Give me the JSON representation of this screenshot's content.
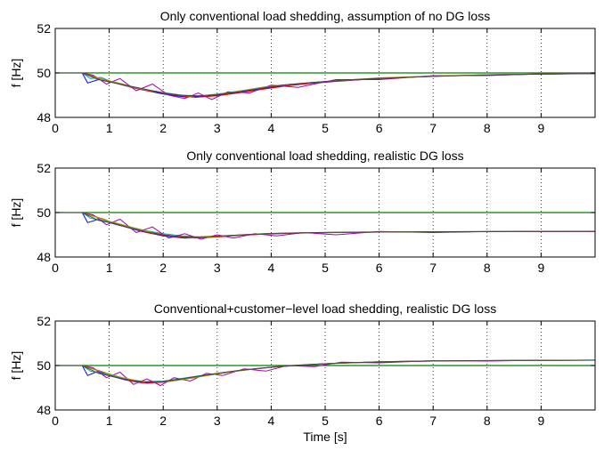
{
  "chart_data": [
    {
      "type": "line",
      "title": "Only conventional load shedding, assumption of no DG loss",
      "xlabel": "",
      "ylabel": "f [Hz]",
      "xlim": [
        0,
        10
      ],
      "ylim": [
        48,
        52
      ],
      "xticks": [
        0,
        1,
        2,
        3,
        4,
        5,
        6,
        7,
        8,
        9
      ],
      "yticks": [
        48,
        50,
        52
      ],
      "grid": "x-dotted",
      "reference_line": 50,
      "series": [
        {
          "color": "#0000ff",
          "x": [
            0,
            0.5,
            0.6,
            0.8,
            1,
            1.3,
            1.6,
            2,
            2.4,
            2.8,
            3.2,
            3.6,
            4,
            4.6,
            5.2,
            6,
            7,
            8,
            9,
            10
          ],
          "y": [
            50,
            50,
            49.55,
            49.7,
            49.6,
            49.45,
            49.25,
            49.05,
            48.92,
            48.95,
            49.05,
            49.2,
            49.35,
            49.5,
            49.62,
            49.75,
            49.85,
            49.9,
            49.95,
            49.97
          ]
        },
        {
          "color": "#ff0000",
          "x": [
            0,
            0.5,
            0.7,
            0.9,
            1.1,
            1.4,
            1.7,
            2,
            2.3,
            2.6,
            3,
            3.4,
            3.8,
            4.3,
            5,
            6,
            7,
            8,
            9,
            10
          ],
          "y": [
            50,
            50,
            49.85,
            49.7,
            49.55,
            49.35,
            49.2,
            49.1,
            48.98,
            48.9,
            48.97,
            49.1,
            49.25,
            49.42,
            49.6,
            49.75,
            49.85,
            49.92,
            49.95,
            49.97
          ]
        },
        {
          "color": "#00aaaa",
          "x": [
            0,
            0.5,
            0.65,
            0.85,
            1.05,
            1.35,
            1.65,
            2,
            2.35,
            2.7,
            3.1,
            3.5,
            3.9,
            4.4,
            5.1,
            6,
            7,
            8,
            9,
            10
          ],
          "y": [
            50,
            50,
            49.75,
            49.8,
            49.6,
            49.4,
            49.25,
            49.12,
            49.0,
            48.97,
            49.08,
            49.22,
            49.38,
            49.5,
            49.63,
            49.76,
            49.86,
            49.91,
            49.95,
            49.98
          ]
        },
        {
          "color": "#aa00aa",
          "x": [
            0,
            0.5,
            0.7,
            0.95,
            1.2,
            1.5,
            1.8,
            2.1,
            2.4,
            2.65,
            2.9,
            3.2,
            3.6,
            4,
            4.5,
            5.2,
            6,
            7,
            8,
            9,
            10
          ],
          "y": [
            50,
            50,
            49.9,
            49.5,
            49.75,
            49.2,
            49.5,
            49.0,
            48.85,
            49.1,
            48.8,
            49.15,
            49.1,
            49.45,
            49.35,
            49.7,
            49.7,
            49.88,
            49.88,
            49.96,
            49.97
          ]
        },
        {
          "color": "#999900",
          "x": [
            0,
            0.5,
            0.75,
            1,
            1.25,
            1.55,
            1.85,
            2.15,
            2.5,
            2.85,
            3.2,
            3.6,
            4,
            4.5,
            5.2,
            6,
            7,
            8,
            9,
            10
          ],
          "y": [
            50,
            50,
            49.8,
            49.65,
            49.5,
            49.3,
            49.18,
            49.05,
            48.95,
            49.0,
            49.1,
            49.25,
            49.4,
            49.52,
            49.65,
            49.78,
            49.86,
            49.92,
            49.95,
            49.97
          ]
        },
        {
          "color": "#444444",
          "x": [
            0,
            0.5,
            0.8,
            1.1,
            1.4,
            1.7,
            2,
            2.3,
            2.6,
            3,
            3.4,
            3.8,
            4.2,
            4.8,
            5.5,
            6.5,
            7.5,
            8.5,
            10
          ],
          "y": [
            50,
            50,
            49.7,
            49.55,
            49.4,
            49.25,
            49.1,
            49.0,
            48.96,
            49.02,
            49.15,
            49.3,
            49.45,
            49.58,
            49.7,
            49.8,
            49.88,
            49.93,
            49.97
          ]
        }
      ]
    },
    {
      "type": "line",
      "title": "Only conventional load shedding, realistic DG loss",
      "xlabel": "",
      "ylabel": "f [Hz]",
      "xlim": [
        0,
        10
      ],
      "ylim": [
        48,
        52
      ],
      "xticks": [
        0,
        1,
        2,
        3,
        4,
        5,
        6,
        7,
        8,
        9
      ],
      "yticks": [
        48,
        50,
        52
      ],
      "grid": "x-dotted",
      "reference_line": 50,
      "series": [
        {
          "color": "#0000ff",
          "x": [
            0,
            0.5,
            0.6,
            0.8,
            1,
            1.3,
            1.6,
            2,
            2.4,
            2.8,
            3.2,
            3.6,
            4,
            4.6,
            5.2,
            6,
            7,
            8,
            9,
            10
          ],
          "y": [
            50,
            50,
            49.55,
            49.7,
            49.55,
            49.35,
            49.15,
            48.95,
            48.85,
            48.88,
            48.95,
            49.0,
            49.05,
            49.08,
            49.1,
            49.12,
            49.13,
            49.14,
            49.15,
            49.15
          ]
        },
        {
          "color": "#ff0000",
          "x": [
            0,
            0.5,
            0.7,
            0.9,
            1.1,
            1.4,
            1.7,
            2,
            2.3,
            2.6,
            3,
            3.4,
            3.8,
            4.3,
            5,
            6,
            7,
            8,
            9,
            10
          ],
          "y": [
            50,
            50,
            49.85,
            49.7,
            49.5,
            49.3,
            49.1,
            48.98,
            48.9,
            48.85,
            48.9,
            48.97,
            49.02,
            49.06,
            49.1,
            49.12,
            49.13,
            49.14,
            49.15,
            49.15
          ]
        },
        {
          "color": "#00aaaa",
          "x": [
            0,
            0.5,
            0.65,
            0.85,
            1.05,
            1.35,
            1.65,
            2,
            2.35,
            2.7,
            3.1,
            3.5,
            3.9,
            4.4,
            5.1,
            6,
            7,
            8,
            9,
            10
          ],
          "y": [
            50,
            50,
            49.75,
            49.65,
            49.58,
            49.38,
            49.2,
            49.05,
            48.95,
            48.9,
            48.95,
            49.0,
            49.05,
            49.08,
            49.1,
            49.12,
            49.13,
            49.14,
            49.15,
            49.16
          ]
        },
        {
          "color": "#aa00aa",
          "x": [
            0,
            0.5,
            0.7,
            0.95,
            1.2,
            1.5,
            1.8,
            2.1,
            2.4,
            2.7,
            3,
            3.3,
            3.7,
            4.1,
            4.6,
            5.2,
            6,
            7,
            8,
            9,
            10
          ],
          "y": [
            50,
            50,
            49.9,
            49.45,
            49.7,
            49.1,
            49.35,
            48.85,
            49.05,
            48.8,
            49.0,
            48.85,
            49.05,
            48.95,
            49.1,
            49.0,
            49.15,
            49.1,
            49.15,
            49.14,
            49.16
          ]
        },
        {
          "color": "#999900",
          "x": [
            0,
            0.5,
            0.75,
            1,
            1.25,
            1.55,
            1.85,
            2.15,
            2.5,
            2.85,
            3.2,
            3.6,
            4,
            4.5,
            5.2,
            6,
            7,
            8,
            9,
            10
          ],
          "y": [
            50,
            50,
            49.8,
            49.6,
            49.45,
            49.25,
            49.08,
            48.95,
            48.88,
            48.9,
            48.96,
            49.02,
            49.06,
            49.09,
            49.11,
            49.13,
            49.14,
            49.15,
            49.15,
            49.16
          ]
        },
        {
          "color": "#444444",
          "x": [
            0,
            0.5,
            0.8,
            1.1,
            1.4,
            1.7,
            2,
            2.3,
            2.6,
            3,
            3.4,
            3.8,
            4.2,
            4.8,
            5.5,
            6.5,
            7.5,
            8.5,
            10
          ],
          "y": [
            50,
            50,
            49.65,
            49.5,
            49.3,
            49.12,
            49.0,
            48.92,
            48.9,
            48.94,
            48.99,
            49.04,
            49.07,
            49.1,
            49.12,
            49.13,
            49.14,
            49.15,
            49.16
          ]
        }
      ]
    },
    {
      "type": "line",
      "title": "Conventional+customer−level load shedding, realistic DG loss",
      "xlabel": "Time [s]",
      "ylabel": "f [Hz]",
      "xlim": [
        0,
        10
      ],
      "ylim": [
        48,
        52
      ],
      "xticks": [
        0,
        1,
        2,
        3,
        4,
        5,
        6,
        7,
        8,
        9
      ],
      "yticks": [
        48,
        50,
        52
      ],
      "grid": "x-dotted",
      "reference_line": 50,
      "series": [
        {
          "color": "#0000ff",
          "x": [
            0,
            0.5,
            0.6,
            0.8,
            1,
            1.3,
            1.6,
            2,
            2.4,
            2.8,
            3.2,
            3.6,
            4,
            4.6,
            5.2,
            6,
            7,
            8,
            9,
            10
          ],
          "y": [
            50,
            50,
            49.55,
            49.75,
            49.55,
            49.35,
            49.22,
            49.25,
            49.4,
            49.55,
            49.7,
            49.82,
            49.92,
            50.02,
            50.1,
            50.17,
            50.2,
            50.22,
            50.23,
            50.24
          ]
        },
        {
          "color": "#ff0000",
          "x": [
            0,
            0.5,
            0.7,
            0.9,
            1.1,
            1.4,
            1.7,
            2,
            2.3,
            2.6,
            3,
            3.4,
            3.8,
            4.3,
            5,
            6,
            7,
            8,
            9,
            10
          ],
          "y": [
            50,
            50,
            49.85,
            49.7,
            49.5,
            49.3,
            49.2,
            49.25,
            49.35,
            49.48,
            49.62,
            49.76,
            49.88,
            49.98,
            50.08,
            50.16,
            50.2,
            50.22,
            50.23,
            50.24
          ]
        },
        {
          "color": "#00aaaa",
          "x": [
            0,
            0.5,
            0.65,
            0.85,
            1.05,
            1.35,
            1.65,
            2,
            2.35,
            2.7,
            3.1,
            3.5,
            3.9,
            4.4,
            5.1,
            6,
            7,
            8,
            9,
            10
          ],
          "y": [
            50,
            50,
            49.75,
            49.65,
            49.55,
            49.38,
            49.28,
            49.3,
            49.42,
            49.55,
            49.68,
            49.8,
            49.9,
            50.0,
            50.09,
            50.17,
            50.21,
            50.22,
            50.23,
            50.25
          ]
        },
        {
          "color": "#aa00aa",
          "x": [
            0,
            0.5,
            0.7,
            0.95,
            1.2,
            1.45,
            1.7,
            1.95,
            2.2,
            2.5,
            2.8,
            3.1,
            3.5,
            3.9,
            4.3,
            4.8,
            5.3,
            6,
            7,
            8,
            9,
            10
          ],
          "y": [
            50,
            50,
            49.9,
            49.45,
            49.7,
            49.15,
            49.4,
            49.1,
            49.45,
            49.3,
            49.65,
            49.55,
            49.85,
            49.75,
            50.0,
            49.95,
            50.15,
            50.12,
            50.22,
            50.2,
            50.24,
            50.24
          ]
        },
        {
          "color": "#999900",
          "x": [
            0,
            0.5,
            0.75,
            1,
            1.25,
            1.55,
            1.85,
            2.15,
            2.5,
            2.85,
            3.2,
            3.6,
            4,
            4.5,
            5.2,
            6,
            7,
            8,
            9,
            10
          ],
          "y": [
            50,
            50,
            49.8,
            49.62,
            49.45,
            49.3,
            49.25,
            49.3,
            49.42,
            49.56,
            49.7,
            49.82,
            49.92,
            50.02,
            50.1,
            50.17,
            50.21,
            50.22,
            50.23,
            50.24
          ]
        },
        {
          "color": "#444444",
          "x": [
            0,
            0.5,
            0.8,
            1.1,
            1.4,
            1.7,
            2,
            2.3,
            2.6,
            3,
            3.4,
            3.8,
            4.2,
            4.8,
            5.5,
            6.5,
            7.5,
            8.5,
            10
          ],
          "y": [
            50,
            50,
            49.65,
            49.48,
            49.33,
            49.26,
            49.28,
            49.38,
            49.5,
            49.65,
            49.78,
            49.88,
            49.97,
            50.06,
            50.13,
            50.19,
            50.22,
            50.23,
            50.24
          ]
        }
      ]
    }
  ]
}
